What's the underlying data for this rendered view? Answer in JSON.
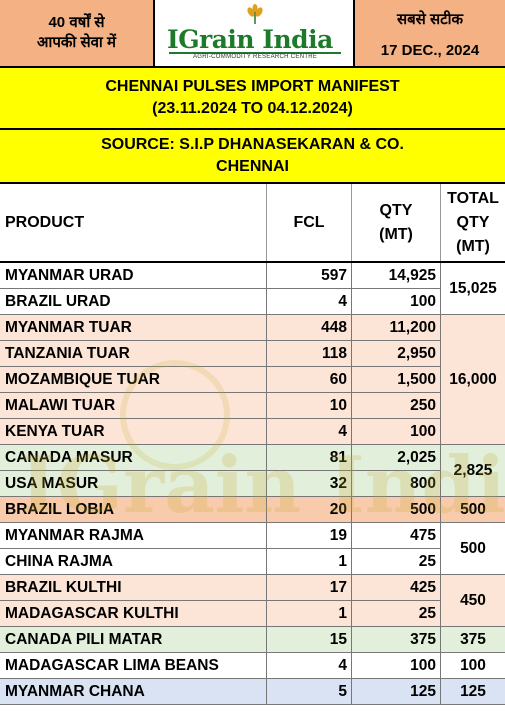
{
  "header": {
    "left_line1": "40 वर्षों से",
    "left_line2": "आपकी सेवा में",
    "logo_text": "IGrain India",
    "logo_tagline": "AGRI-COMMODITY RESEARCH CENTRE",
    "right_line1": "सबसे सटीक",
    "right_date": "17 DEC., 2024"
  },
  "title": {
    "line1": "CHENNAI PULSES IMPORT MANIFEST",
    "line2": "(23.11.2024 TO 04.12.2024)",
    "source_line1": "SOURCE: S.I.P DHANASEKARAN & CO.",
    "source_line2": "CHENNAI"
  },
  "columns": {
    "product": "PRODUCT",
    "fcl": "FCL",
    "qty_line1": "QTY",
    "qty_line2": "(MT)",
    "total_line1": "TOTAL",
    "total_line2": "QTY",
    "total_line3": "(MT)"
  },
  "rows": [
    {
      "product": "MYANMAR URAD",
      "fcl": "597",
      "qty": "14,925",
      "color": "#ffffff"
    },
    {
      "product": "BRAZIL URAD",
      "fcl": "4",
      "qty": "100",
      "color": "#ffffff"
    },
    {
      "product": "MYANMAR TUAR",
      "fcl": "448",
      "qty": "11,200",
      "color": "#fce4d6"
    },
    {
      "product": "TANZANIA TUAR",
      "fcl": "118",
      "qty": "2,950",
      "color": "#fce4d6"
    },
    {
      "product": "MOZAMBIQUE TUAR",
      "fcl": "60",
      "qty": "1,500",
      "color": "#fce4d6"
    },
    {
      "product": "MALAWI TUAR",
      "fcl": "10",
      "qty": "250",
      "color": "#fce4d6"
    },
    {
      "product": "KENYA TUAR",
      "fcl": "4",
      "qty": "100",
      "color": "#fce4d6"
    },
    {
      "product": "CANADA MASUR",
      "fcl": "81",
      "qty": "2,025",
      "color": "#e2efda"
    },
    {
      "product": "USA MASUR",
      "fcl": "32",
      "qty": "800",
      "color": "#e2efda"
    },
    {
      "product": "BRAZIL LOBIA",
      "fcl": "20",
      "qty": "500",
      "color": "#f8cbad"
    },
    {
      "product": "MYANMAR RAJMA",
      "fcl": "19",
      "qty": "475",
      "color": "#ffffff"
    },
    {
      "product": "CHINA RAJMA",
      "fcl": "1",
      "qty": "25",
      "color": "#ffffff"
    },
    {
      "product": "BRAZIL KULTHI",
      "fcl": "17",
      "qty": "425",
      "color": "#fce4d6"
    },
    {
      "product": "MADAGASCAR KULTHI",
      "fcl": "1",
      "qty": "25",
      "color": "#fce4d6"
    },
    {
      "product": "CANADA PILI MATAR",
      "fcl": "15",
      "qty": "375",
      "color": "#e2efda"
    },
    {
      "product": "MADAGASCAR LIMA BEANS",
      "fcl": "4",
      "qty": "100",
      "color": "#ffffff"
    },
    {
      "product": "MYANMAR CHANA",
      "fcl": "5",
      "qty": "125",
      "color": "#dae3f3"
    }
  ],
  "totals": [
    {
      "value": "15,025",
      "rows": 2,
      "color": "#ffffff"
    },
    {
      "value": "16,000",
      "rows": 5,
      "color": "#fce4d6"
    },
    {
      "value": "2,825",
      "rows": 2,
      "color": "#e2efda"
    },
    {
      "value": "500",
      "rows": 1,
      "color": "#f8cbad"
    },
    {
      "value": "500",
      "rows": 2,
      "color": "#ffffff"
    },
    {
      "value": "450",
      "rows": 2,
      "color": "#fce4d6"
    },
    {
      "value": "375",
      "rows": 1,
      "color": "#e2efda"
    },
    {
      "value": "100",
      "rows": 1,
      "color": "#ffffff"
    },
    {
      "value": "125",
      "rows": 1,
      "color": "#dae3f3"
    }
  ],
  "watermark_text": "IGrain India"
}
